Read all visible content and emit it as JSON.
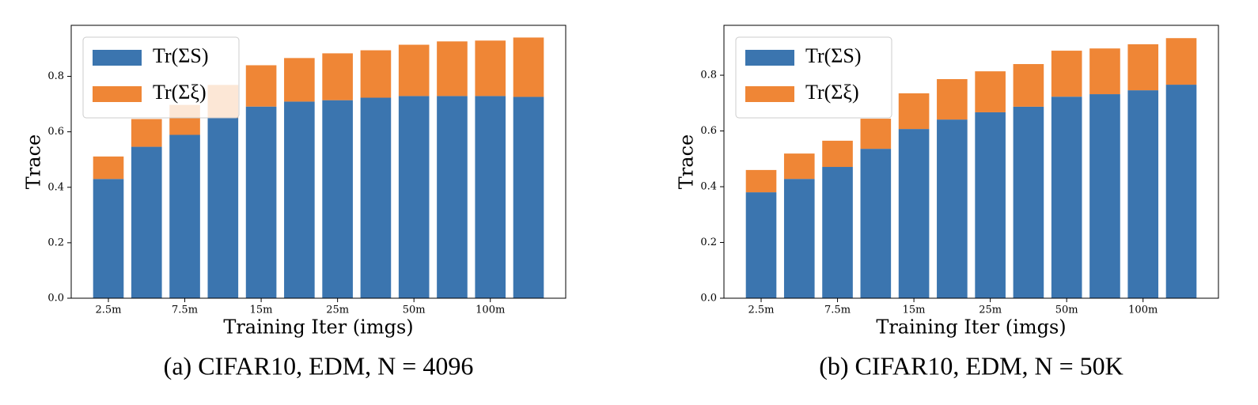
{
  "chart_data": [
    {
      "type": "stacked-bar",
      "caption": "(a) CIFAR10, EDM, N = 4096",
      "xlabel": "Training Iter (imgs)",
      "ylabel": "Trace",
      "categories": [
        "2.5m",
        null,
        "7.5m",
        null,
        "15m",
        null,
        "25m",
        null,
        "50m",
        null,
        "100m",
        null
      ],
      "series": [
        {
          "name": "Tr(ΣS)",
          "color": "#3b75af",
          "values": [
            0.43,
            0.546,
            0.589,
            0.65,
            0.691,
            0.709,
            0.714,
            0.723,
            0.729,
            0.729,
            0.729,
            0.726
          ]
        },
        {
          "name": "Tr(Σξ)",
          "color": "#ef8636",
          "values": [
            0.081,
            0.1,
            0.108,
            0.119,
            0.149,
            0.157,
            0.169,
            0.171,
            0.185,
            0.197,
            0.2,
            0.214
          ]
        }
      ],
      "ylim": [
        0,
        0.984
      ],
      "yticks": [
        {
          "value": 0,
          "label": "0.0"
        },
        0.2,
        0.4,
        0.6,
        0.8
      ],
      "legend": "upper left"
    },
    {
      "type": "stacked-bar",
      "caption": "(b) CIFAR10, EDM, N = 50K",
      "xlabel": "Training Iter (imgs)",
      "ylabel": "Trace",
      "categories": [
        "2.5m",
        null,
        "7.5m",
        null,
        "15m",
        null,
        "25m",
        null,
        "50m",
        null,
        "100m",
        null
      ],
      "series": [
        {
          "name": "Tr(ΣS)",
          "color": "#3b75af",
          "values": [
            0.38,
            0.428,
            0.471,
            0.536,
            0.607,
            0.641,
            0.667,
            0.687,
            0.723,
            0.732,
            0.746,
            0.766
          ]
        },
        {
          "name": "Tr(Σξ)",
          "color": "#ef8636",
          "values": [
            0.08,
            0.091,
            0.094,
            0.108,
            0.128,
            0.145,
            0.147,
            0.153,
            0.165,
            0.164,
            0.165,
            0.167
          ]
        }
      ],
      "ylim": [
        0,
        0.979
      ],
      "yticks": [
        {
          "value": 0,
          "label": "0.0"
        },
        0.2,
        0.4,
        0.6,
        0.8
      ],
      "legend": "upper left"
    }
  ]
}
